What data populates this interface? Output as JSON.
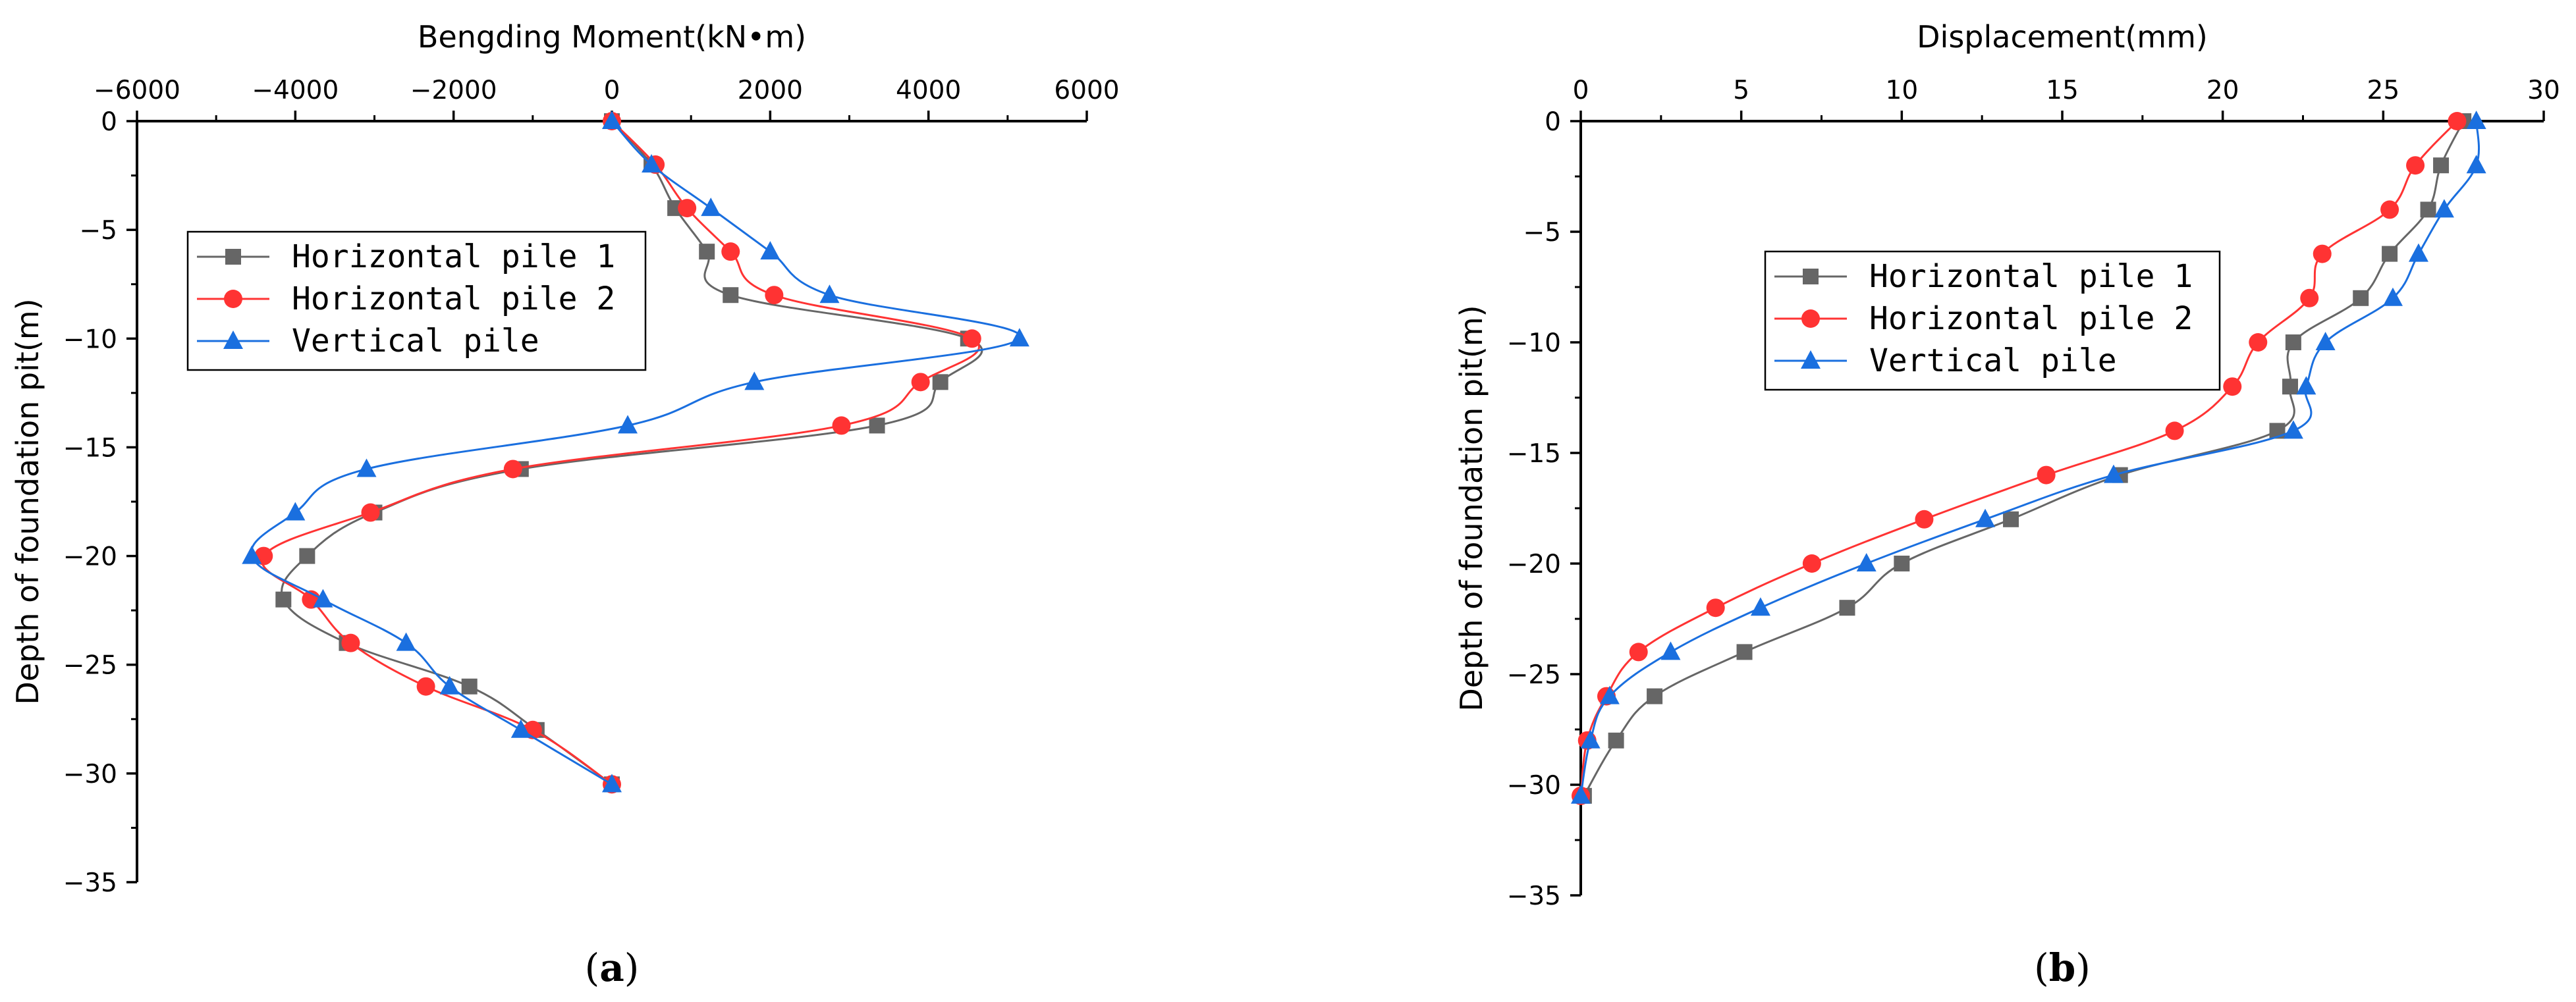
{
  "chart_data": [
    {
      "type": "line",
      "panel_label": {
        "open": "(",
        "letter": "a",
        "close": ")"
      },
      "title": "",
      "xlabel": "Bengding Moment(kN•m)",
      "ylabel": "Depth of foundation pit(m)",
      "xlim": [
        -6000,
        6000
      ],
      "ylim": [
        -35,
        0
      ],
      "xticks": [
        -6000,
        -4000,
        -2000,
        0,
        2000,
        4000,
        6000
      ],
      "yticks": [
        0,
        -5,
        -10,
        -15,
        -20,
        -25,
        -30,
        -35
      ],
      "x_axis_position": "top",
      "grid": false,
      "legend_position": "upper-left",
      "series": [
        {
          "name": "Horizontal pile 1",
          "color": "#666666",
          "marker": "square",
          "points": [
            [
              0,
              0
            ],
            [
              500,
              -2
            ],
            [
              800,
              -4
            ],
            [
              1200,
              -6
            ],
            [
              1500,
              -8
            ],
            [
              4500,
              -10
            ],
            [
              4150,
              -12
            ],
            [
              3350,
              -14
            ],
            [
              -1150,
              -16
            ],
            [
              -3000,
              -18
            ],
            [
              -3850,
              -20
            ],
            [
              -4150,
              -22
            ],
            [
              -3350,
              -24
            ],
            [
              -1800,
              -26
            ],
            [
              -950,
              -28
            ],
            [
              0,
              -30.5
            ]
          ]
        },
        {
          "name": "Horizontal pile 2",
          "color": "#ff3333",
          "marker": "circle",
          "points": [
            [
              0,
              0
            ],
            [
              550,
              -2
            ],
            [
              950,
              -4
            ],
            [
              1500,
              -6
            ],
            [
              2050,
              -8
            ],
            [
              4550,
              -10
            ],
            [
              3900,
              -12
            ],
            [
              2900,
              -14
            ],
            [
              -1250,
              -16
            ],
            [
              -3050,
              -18
            ],
            [
              -4400,
              -20
            ],
            [
              -3800,
              -22
            ],
            [
              -3300,
              -24
            ],
            [
              -2350,
              -26
            ],
            [
              -1000,
              -28
            ],
            [
              0,
              -30.5
            ]
          ]
        },
        {
          "name": "Vertical pile",
          "color": "#1a6fdf",
          "marker": "triangle",
          "points": [
            [
              0,
              0
            ],
            [
              500,
              -2
            ],
            [
              1250,
              -4
            ],
            [
              2000,
              -6
            ],
            [
              2750,
              -8
            ],
            [
              5150,
              -10
            ],
            [
              1800,
              -12
            ],
            [
              200,
              -14
            ],
            [
              -3100,
              -16
            ],
            [
              -4000,
              -18
            ],
            [
              -4550,
              -20
            ],
            [
              -3650,
              -22
            ],
            [
              -2600,
              -24
            ],
            [
              -2050,
              -26
            ],
            [
              -1150,
              -28
            ],
            [
              0,
              -30.5
            ]
          ]
        }
      ]
    },
    {
      "type": "line",
      "panel_label": {
        "open": "(",
        "letter": "b",
        "close": ")"
      },
      "title": "",
      "xlabel": "Displacement(mm)",
      "ylabel": "Depth of foundation pit(m)",
      "xlim": [
        0,
        30
      ],
      "ylim": [
        -35,
        0
      ],
      "xticks": [
        0,
        5,
        10,
        15,
        20,
        25,
        30
      ],
      "yticks": [
        0,
        -5,
        -10,
        -15,
        -20,
        -25,
        -30,
        -35
      ],
      "x_axis_position": "top",
      "grid": false,
      "legend_position": "upper-left",
      "series": [
        {
          "name": "Horizontal pile 1",
          "color": "#666666",
          "marker": "square",
          "points": [
            [
              27.5,
              0
            ],
            [
              26.8,
              -2
            ],
            [
              26.4,
              -4
            ],
            [
              25.2,
              -6
            ],
            [
              24.3,
              -8
            ],
            [
              22.2,
              -10
            ],
            [
              22.1,
              -12
            ],
            [
              21.7,
              -14
            ],
            [
              16.8,
              -16
            ],
            [
              13.4,
              -18
            ],
            [
              10.0,
              -20
            ],
            [
              8.3,
              -22
            ],
            [
              5.1,
              -24
            ],
            [
              2.3,
              -26
            ],
            [
              1.1,
              -28
            ],
            [
              0.1,
              -30.5
            ]
          ]
        },
        {
          "name": "Horizontal pile 2",
          "color": "#ff3333",
          "marker": "circle",
          "points": [
            [
              27.3,
              0
            ],
            [
              26.0,
              -2
            ],
            [
              25.2,
              -4
            ],
            [
              23.1,
              -6
            ],
            [
              22.7,
              -8
            ],
            [
              21.1,
              -10
            ],
            [
              20.3,
              -12
            ],
            [
              18.5,
              -14
            ],
            [
              14.5,
              -16
            ],
            [
              10.7,
              -18
            ],
            [
              7.2,
              -20
            ],
            [
              4.2,
              -22
            ],
            [
              1.8,
              -24
            ],
            [
              0.8,
              -26
            ],
            [
              0.2,
              -28
            ],
            [
              0.0,
              -30.5
            ]
          ]
        },
        {
          "name": "Vertical pile",
          "color": "#1a6fdf",
          "marker": "triangle",
          "points": [
            [
              27.9,
              0
            ],
            [
              27.9,
              -2
            ],
            [
              26.9,
              -4
            ],
            [
              26.1,
              -6
            ],
            [
              25.3,
              -8
            ],
            [
              23.2,
              -10
            ],
            [
              22.6,
              -12
            ],
            [
              22.2,
              -14
            ],
            [
              16.6,
              -16
            ],
            [
              12.6,
              -18
            ],
            [
              8.9,
              -20
            ],
            [
              5.6,
              -22
            ],
            [
              2.8,
              -24
            ],
            [
              0.9,
              -26
            ],
            [
              0.3,
              -28
            ],
            [
              0.0,
              -30.5
            ]
          ]
        }
      ]
    }
  ]
}
